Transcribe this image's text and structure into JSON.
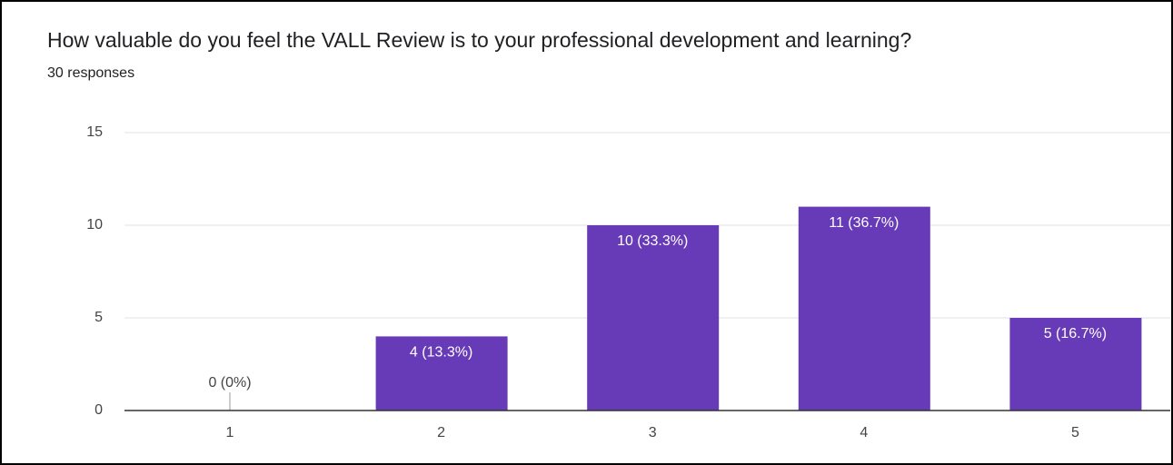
{
  "chart_data": {
    "type": "bar",
    "title": "How valuable do you feel the VALL Review is to your professional development and learning?",
    "subtitle": "30 responses",
    "categories": [
      "1",
      "2",
      "3",
      "4",
      "5"
    ],
    "values": [
      0,
      4,
      10,
      11,
      5
    ],
    "value_labels": [
      "0 (0%)",
      "4 (13.3%)",
      "10 (33.3%)",
      "11 (36.7%)",
      "5 (16.7%)"
    ],
    "color": "#673ab7",
    "ylim": [
      0,
      15
    ],
    "yticks": [
      0,
      5,
      10,
      15
    ],
    "grid": true
  }
}
